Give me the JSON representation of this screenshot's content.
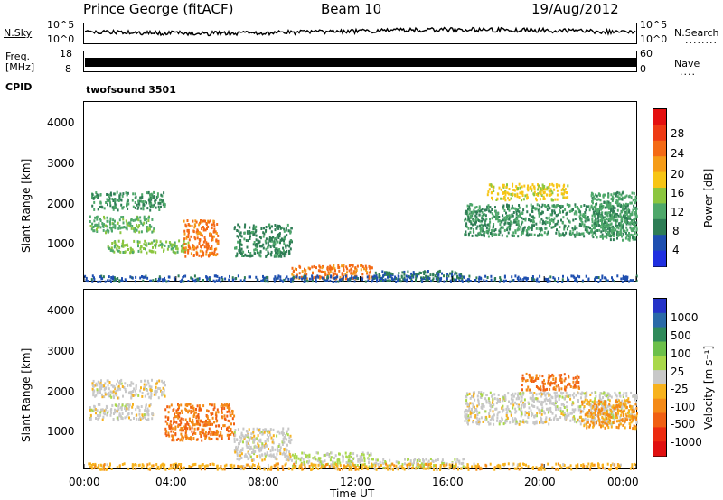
{
  "header": {
    "station": "Prince George (fitACF)",
    "beam": "Beam 10",
    "date": "19/Aug/2012"
  },
  "strips": {
    "noise": {
      "left_label": "N.Sky",
      "right_label": "N.Search",
      "left_ticks": [
        "10^5",
        "10^0"
      ],
      "right_ticks": [
        "10^5",
        "10^0"
      ]
    },
    "freq": {
      "left_label_1": "Freq.",
      "left_label_2": "[MHz]",
      "right_label": "Nave",
      "left_ticks": [
        "18",
        "8"
      ],
      "right_ticks": [
        "60",
        "0"
      ]
    },
    "cpid": {
      "left_label": "CPID",
      "program": "twofsound 3501"
    }
  },
  "axes": {
    "ylabel": "Slant Range [km]",
    "xlabel": "Time UT",
    "yticks": [
      "1000",
      "2000",
      "3000",
      "4000"
    ],
    "xticks": [
      "00:00",
      "04:00",
      "08:00",
      "12:00",
      "16:00",
      "20:00",
      "00:00"
    ]
  },
  "colorbars": {
    "power": {
      "label": "Power [dB]",
      "ticks": [
        "4",
        "8",
        "12",
        "16",
        "20",
        "24",
        "28"
      ],
      "colors": [
        "#1f2fe0",
        "#1e4fb0",
        "#2e7d55",
        "#4ea86a",
        "#8cc63f",
        "#f7c515",
        "#f59c18",
        "#f46a15",
        "#ee3a14",
        "#e41010"
      ]
    },
    "velocity": {
      "label": "Velocity [m s⁻¹]",
      "ticks": [
        "1000",
        "500",
        "100",
        "25",
        "-25",
        "-100",
        "-500",
        "-1000"
      ],
      "colors": [
        "#2533c8",
        "#2a6aa8",
        "#2f8a5a",
        "#6cc04a",
        "#a9d84a",
        "#c8c8c8",
        "#f7b21d",
        "#f48a17",
        "#f05f12",
        "#ec2b10",
        "#e01010"
      ]
    }
  },
  "chart_data": {
    "type": "heatmap",
    "title": "Prince George (fitACF) Beam 10 19/Aug/2012",
    "xlabel": "Time UT",
    "ylabel": "Slant Range [km]",
    "xlim": [
      "00:00",
      "24:00"
    ],
    "ylim": [
      180,
      4600
    ],
    "panels": [
      {
        "name": "Power",
        "colorbar": "Power [dB]",
        "range": [
          0,
          30
        ],
        "regions": [
          {
            "t": [
              0.3,
              3.5
            ],
            "r": [
              1950,
              2400
            ],
            "v": 9
          },
          {
            "t": [
              0.2,
              3.0
            ],
            "r": [
              1400,
              1800
            ],
            "v": 11
          },
          {
            "t": [
              1.0,
              4.5
            ],
            "r": [
              900,
              1200
            ],
            "v": 13
          },
          {
            "t": [
              4.3,
              5.8
            ],
            "r": [
              800,
              1700
            ],
            "v": 22
          },
          {
            "t": [
              6.5,
              9.0
            ],
            "r": [
              800,
              1600
            ],
            "v": 8
          },
          {
            "t": [
              9.0,
              12.5
            ],
            "r": [
              250,
              600
            ],
            "v": 22
          },
          {
            "t": [
              12.5,
              16.5
            ],
            "r": [
              200,
              450
            ],
            "v": 7
          },
          {
            "t": [
              17.5,
              21.0
            ],
            "r": [
              2200,
              2600
            ],
            "v": 16
          },
          {
            "t": [
              16.5,
              24.0
            ],
            "r": [
              1300,
              2100
            ],
            "v": 9
          },
          {
            "t": [
              22.0,
              24.0
            ],
            "r": [
              1200,
              2400
            ],
            "v": 10
          },
          {
            "t": [
              0.0,
              24.0
            ],
            "r": [
              180,
              330
            ],
            "v": 5
          }
        ]
      },
      {
        "name": "Velocity",
        "colorbar": "Velocity [m s⁻¹]",
        "range": [
          -1000,
          1000
        ],
        "regions": [
          {
            "t": [
              0.3,
              3.5
            ],
            "r": [
              1950,
              2400
            ],
            "v": -20
          },
          {
            "t": [
              0.2,
              3.0
            ],
            "r": [
              1400,
              1800
            ],
            "v": -10
          },
          {
            "t": [
              3.5,
              6.5
            ],
            "r": [
              900,
              1800
            ],
            "v": -450
          },
          {
            "t": [
              6.5,
              9.0
            ],
            "r": [
              400,
              1200
            ],
            "v": 0
          },
          {
            "t": [
              9.0,
              12.5
            ],
            "r": [
              250,
              600
            ],
            "v": 120
          },
          {
            "t": [
              12.5,
              16.5
            ],
            "r": [
              200,
              450
            ],
            "v": 60
          },
          {
            "t": [
              19.0,
              21.5
            ],
            "r": [
              2150,
              2550
            ],
            "v": -450
          },
          {
            "t": [
              16.5,
              24.0
            ],
            "r": [
              1300,
              2100
            ],
            "v": 0
          },
          {
            "t": [
              21.5,
              24.0
            ],
            "r": [
              1200,
              1900
            ],
            "v": -300
          },
          {
            "t": [
              0.0,
              24.0
            ],
            "r": [
              180,
              330
            ],
            "v": -200
          }
        ]
      }
    ]
  }
}
